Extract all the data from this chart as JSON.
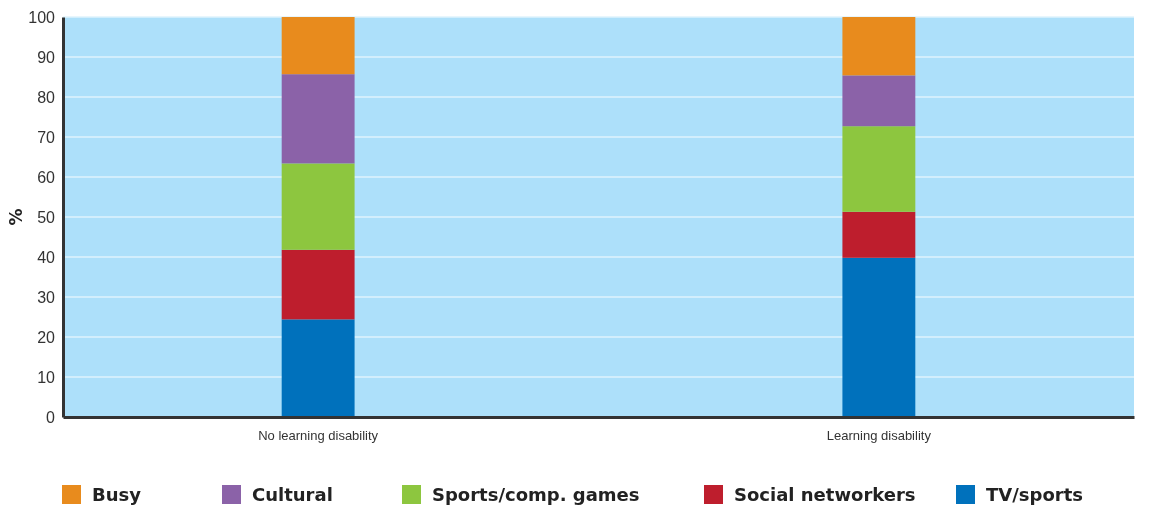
{
  "chart_data": {
    "type": "bar",
    "stacked": true,
    "ylabel": "%",
    "categories": [
      "No learning disability",
      "Learning disability"
    ],
    "ylim": [
      0,
      100
    ],
    "yticks": [
      0,
      10,
      20,
      30,
      40,
      50,
      60,
      70,
      80,
      90,
      100
    ],
    "grid": "y",
    "legend": "bottom",
    "series": [
      {
        "name": "TV/sports",
        "color": "#0071bc",
        "values": [
          24.4,
          39.8
        ]
      },
      {
        "name": "Social networkers",
        "color": "#be1e2d",
        "values": [
          17.4,
          11.5
        ]
      },
      {
        "name": "Sports/comp. games",
        "color": "#8dc63f",
        "values": [
          21.6,
          21.4
        ]
      },
      {
        "name": "Cultural",
        "color": "#8b62a8",
        "values": [
          22.3,
          12.7
        ]
      },
      {
        "name": "Busy",
        "color": "#e88b1d",
        "values": [
          14.3,
          14.6
        ]
      }
    ]
  }
}
